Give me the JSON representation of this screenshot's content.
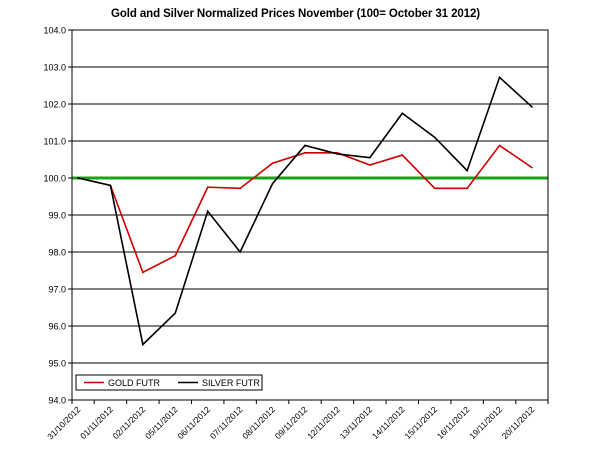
{
  "colors": {
    "gold": "#cc0000",
    "silver": "#000000",
    "baseline": "#1aa11a",
    "grid": "#000000",
    "background": "#ffffff"
  },
  "chart_data": {
    "type": "line",
    "title": "Gold and Silver Normalized Prices November (100= October 31 2012)",
    "xlabel": "",
    "ylabel": "",
    "categories": [
      "31/10/2012",
      "01/11/2012",
      "02/11/2012",
      "05/11/2012",
      "06/11/2012",
      "07/11/2012",
      "08/11/2012",
      "09/11/2012",
      "12/11/2012",
      "13/11/2012",
      "14/11/2012",
      "15/11/2012",
      "16/11/2012",
      "19/11/2012",
      "20/11/2012"
    ],
    "ylim": [
      94.0,
      104.0
    ],
    "yticks": [
      94.0,
      95.0,
      96.0,
      97.0,
      98.0,
      99.0,
      100.0,
      101.0,
      102.0,
      103.0,
      104.0
    ],
    "ytick_labels": [
      "94.0",
      "95.0",
      "96.0",
      "97.0",
      "98.0",
      "99.0",
      "100.0",
      "101.0",
      "102.0",
      "103.0",
      "104.0"
    ],
    "grid": true,
    "reference_line": {
      "y": 100.0
    },
    "legend_position": "bottom-left",
    "series": [
      {
        "name": "GOLD  FUTR",
        "color_key": "gold",
        "values": [
          100.0,
          99.8,
          97.45,
          97.9,
          99.75,
          99.72,
          100.4,
          100.68,
          100.68,
          100.35,
          100.62,
          99.72,
          99.72,
          100.88,
          100.28
        ]
      },
      {
        "name": "SILVER  FUTR",
        "color_key": "silver",
        "values": [
          100.0,
          99.8,
          95.5,
          96.35,
          99.1,
          98.0,
          99.85,
          100.88,
          100.65,
          100.55,
          101.75,
          101.1,
          100.2,
          102.72,
          101.92
        ]
      }
    ]
  }
}
